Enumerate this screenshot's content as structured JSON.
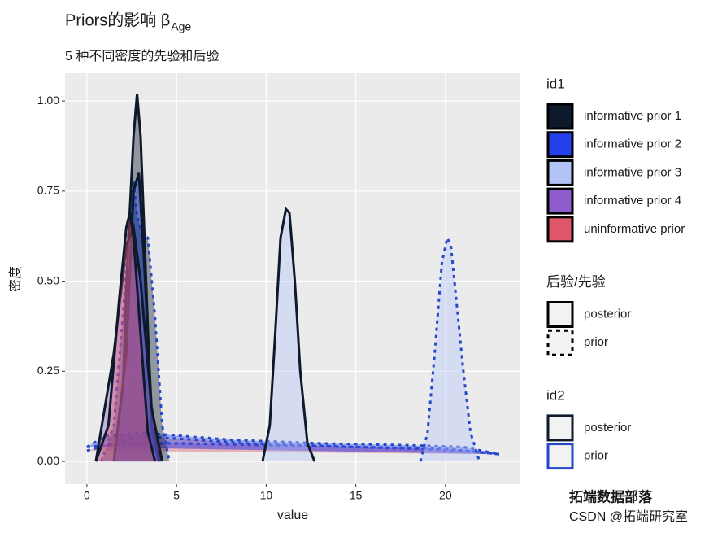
{
  "chart_data": {
    "type": "density",
    "title": "Priors的影响 β",
    "title_subscript": "Age",
    "subtitle": "5 种不同密度的先验和后验",
    "x_label": "value",
    "y_label": "密度",
    "xlim": [
      -1.22,
      24.18
    ],
    "ylim": [
      -0.063,
      1.077
    ],
    "xticks": [
      0,
      5,
      10,
      15,
      20
    ],
    "yticks": [
      {
        "value": 0,
        "label": "0.00"
      },
      {
        "value": 0.25,
        "label": "0.25"
      },
      {
        "value": 0.5,
        "label": "0.50"
      },
      {
        "value": 0.75,
        "label": "0.75"
      },
      {
        "value": 1,
        "label": "1.00"
      }
    ],
    "grid": true,
    "legends": [
      {
        "title": "id1",
        "key": "fill",
        "entries": [
          {
            "label": "informative prior 1",
            "fill": "#0d1a2b"
          },
          {
            "label": "informative prior 2",
            "fill": "#2340ea"
          },
          {
            "label": "informative prior 3",
            "fill": "#b3c3f7"
          },
          {
            "label": "informative prior 4",
            "fill": "#8e5ccc"
          },
          {
            "label": "uninformative prior",
            "fill": "#e0566a"
          }
        ]
      },
      {
        "title": "后验/先验",
        "key": "dash",
        "entries": [
          {
            "label": "posterior",
            "dashed": false
          },
          {
            "label": "prior",
            "dashed": true
          }
        ]
      },
      {
        "title": "id2",
        "key": "color",
        "entries": [
          {
            "label": "posterior",
            "color": "#0d1a2b"
          },
          {
            "label": "prior",
            "color": "#2448cc"
          }
        ]
      }
    ],
    "series": [
      {
        "id1": "uninformative prior",
        "id2": "prior",
        "x": [
          0,
          3,
          6,
          9,
          12,
          15,
          18,
          21,
          23
        ],
        "values": [
          0.03,
          0.07,
          0.06,
          0.05,
          0.045,
          0.04,
          0.035,
          0.03,
          0.02
        ]
      },
      {
        "id1": "informative prior 4",
        "id2": "prior",
        "x": [
          0,
          2,
          5,
          10,
          15,
          20,
          23
        ],
        "values": [
          0.04,
          0.05,
          0.05,
          0.045,
          0.04,
          0.035,
          0.02
        ]
      },
      {
        "id1": "informative prior 2",
        "id2": "prior",
        "x": [
          0,
          1,
          3,
          8,
          13,
          18,
          21,
          23
        ],
        "values": [
          0.04,
          0.07,
          0.08,
          0.06,
          0.05,
          0.045,
          0.04,
          0.02
        ]
      },
      {
        "id1": "informative prior 3",
        "id2": "prior",
        "x": [
          18.6,
          19,
          19.4,
          19.8,
          20.1,
          20.3,
          20.6,
          21,
          21.4,
          21.9
        ],
        "values": [
          0,
          0.08,
          0.3,
          0.55,
          0.62,
          0.6,
          0.45,
          0.25,
          0.08,
          0
        ]
      },
      {
        "id1": "informative prior 1",
        "id2": "prior",
        "x": [
          0.8,
          1.5,
          2,
          2.4,
          2.6,
          2.8,
          3.1,
          3.4,
          3.8,
          4.2,
          4.6
        ],
        "values": [
          0,
          0.1,
          0.4,
          0.7,
          0.78,
          0.68,
          0.63,
          0.62,
          0.4,
          0.1,
          0
        ]
      },
      {
        "id1": "informative prior 3",
        "id2": "posterior",
        "x": [
          9.8,
          10.2,
          10.5,
          10.8,
          11.1,
          11.3,
          11.6,
          11.9,
          12.3,
          12.7
        ],
        "values": [
          0,
          0.1,
          0.35,
          0.62,
          0.7,
          0.69,
          0.5,
          0.25,
          0.05,
          0
        ]
      },
      {
        "id1": "informative prior 1",
        "id2": "posterior",
        "x": [
          1.5,
          2,
          2.3,
          2.6,
          2.8,
          3,
          3.3,
          3.6,
          4
        ],
        "values": [
          0,
          0.2,
          0.6,
          0.9,
          1.02,
          0.9,
          0.5,
          0.1,
          0
        ]
      },
      {
        "id1": "informative prior 2",
        "id2": "posterior",
        "x": [
          1.5,
          2.2,
          2.6,
          2.9,
          3.2,
          3.6,
          4.1
        ],
        "values": [
          0,
          0.3,
          0.75,
          0.8,
          0.55,
          0.15,
          0
        ]
      },
      {
        "id1": "informative prior 4",
        "id2": "posterior",
        "x": [
          0.5,
          1.5,
          2.2,
          2.6,
          3,
          3.6,
          4.2
        ],
        "values": [
          0,
          0.3,
          0.6,
          0.65,
          0.5,
          0.15,
          0
        ]
      },
      {
        "id1": "uninformative prior",
        "id2": "posterior",
        "x": [
          0.5,
          1.2,
          1.8,
          2.2,
          2.4,
          2.6,
          3,
          3.4,
          3.8
        ],
        "values": [
          0,
          0.1,
          0.45,
          0.65,
          0.69,
          0.62,
          0.35,
          0.08,
          0
        ]
      }
    ]
  },
  "watermark": {
    "line1": "拓端数据部落",
    "line2": "CSDN @拓端研究室"
  }
}
